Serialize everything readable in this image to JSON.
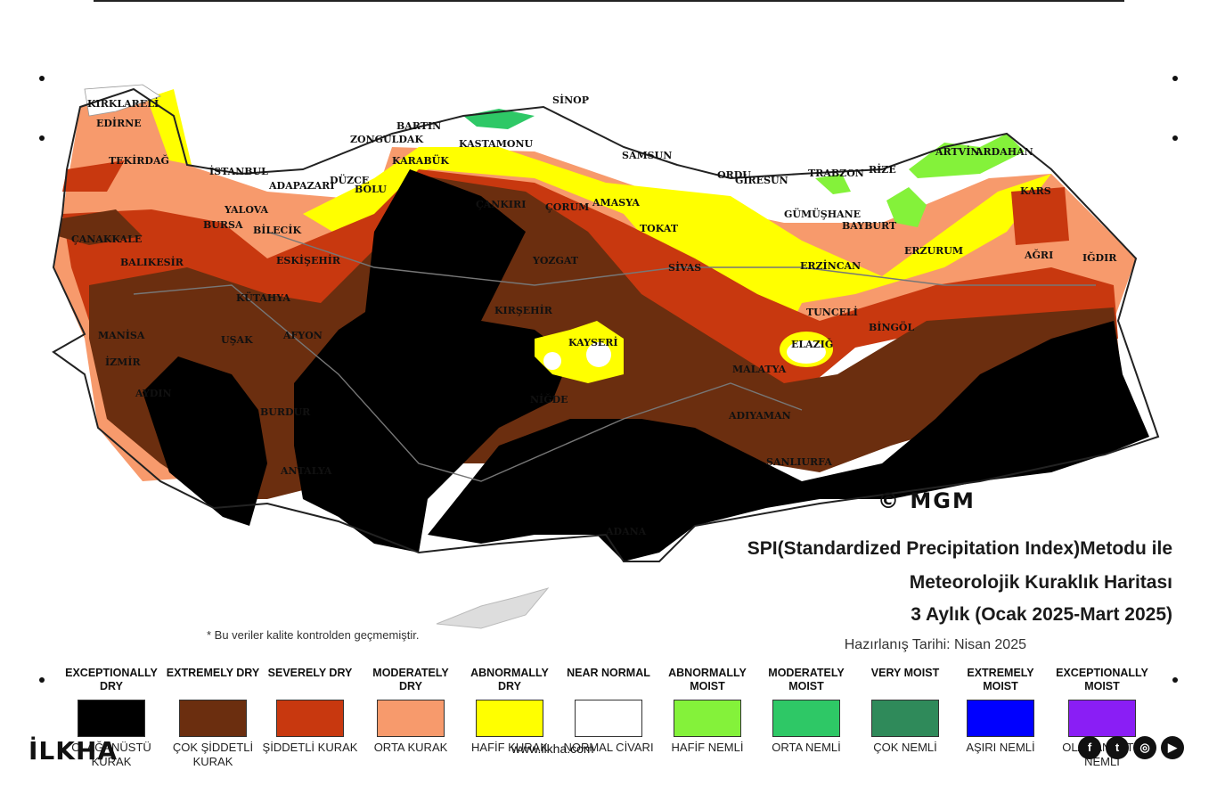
{
  "map": {
    "copyright": "© MGM",
    "title_line1": "SPI(Standardized Precipitation Index)Metodu ile",
    "title_line2": "Meteorolojik Kuraklık Haritası",
    "title_line3": "3 Aylık (Ocak 2025-Mart 2025)",
    "prepared": "Hazırlanış Tarihi: Nisan 2025",
    "note": "* Bu veriler kalite kontrolden geçmemiştir.",
    "cities": [
      "KIRKLARELİ",
      "EDİRNE",
      "TEKİRDAĞ",
      "İSTANBUL",
      "ÇANAKKALE",
      "BALIKESİR",
      "BURSA",
      "YALOVA",
      "BİLECİK",
      "ESKİŞEHİR",
      "KÜTAHYA",
      "MANİSA",
      "İZMİR",
      "UŞAK",
      "AFYON",
      "AYDIN",
      "BURDUR",
      "ANTALYA",
      "ADAPAZARI",
      "DÜZCE",
      "BOLU",
      "BARTIN",
      "ZONGULDAK",
      "KARABÜK",
      "KASTAMONU",
      "SİNOP",
      "SAMSUN",
      "ORDU",
      "GİRESUN",
      "TRABZON",
      "RİZE",
      "ARTVİN",
      "ARDAHAN",
      "KARS",
      "IĞDIR",
      "AĞRI",
      "ERZURUM",
      "BAYBURT",
      "GÜMÜŞHANE",
      "ERZİNCAN",
      "TUNCELİ",
      "BİNGÖL",
      "ELAZIĞ",
      "MALATYA",
      "ADIYAMAN",
      "ŞANLIURFA",
      "TOKAT",
      "AMASYA",
      "ÇORUM",
      "SİVAS",
      "YOZGAT",
      "KIRŞEHİR",
      "KAYSERİ",
      "NİĞDE",
      "ÇANKIRI",
      "ADANA"
    ]
  },
  "legend": [
    {
      "en": "EXCEPTIONALLY DRY",
      "tr": "OLAĞANÜSTÜ KURAK",
      "color": "#000000"
    },
    {
      "en": "EXTREMELY DRY",
      "tr": "ÇOK ŞİDDETLİ KURAK",
      "color": "#6b2e0f"
    },
    {
      "en": "SEVERELY DRY",
      "tr": "ŞİDDETLİ KURAK",
      "color": "#c8380f"
    },
    {
      "en": "MODERATELY DRY",
      "tr": "ORTA KURAK",
      "color": "#f79a6c"
    },
    {
      "en": "ABNORMALLY DRY",
      "tr": "HAFİF KURAK",
      "color": "#ffff00"
    },
    {
      "en": "NEAR NORMAL",
      "tr": "NORMAL CİVARI",
      "color": "#ffffff"
    },
    {
      "en": "ABNORMALLY MOIST",
      "tr": "HAFİF NEMLİ",
      "color": "#84f23a"
    },
    {
      "en": "MODERATELY MOIST",
      "tr": "ORTA NEMLİ",
      "color": "#2ec866"
    },
    {
      "en": "VERY MOIST",
      "tr": "ÇOK NEMLİ",
      "color": "#2f8a5a"
    },
    {
      "en": "EXTREMELY MOIST",
      "tr": "AŞIRI NEMLİ",
      "color": "#0000ff"
    },
    {
      "en": "EXCEPTIONALLY MOIST",
      "tr": "OLAĞANÜSTÜ NEMLİ",
      "color": "#8a1ef5"
    }
  ],
  "watermark": {
    "logo": "İLKHA",
    "site": "www.ilkha.com",
    "social": [
      "f",
      "t",
      "◎",
      "▶"
    ]
  }
}
